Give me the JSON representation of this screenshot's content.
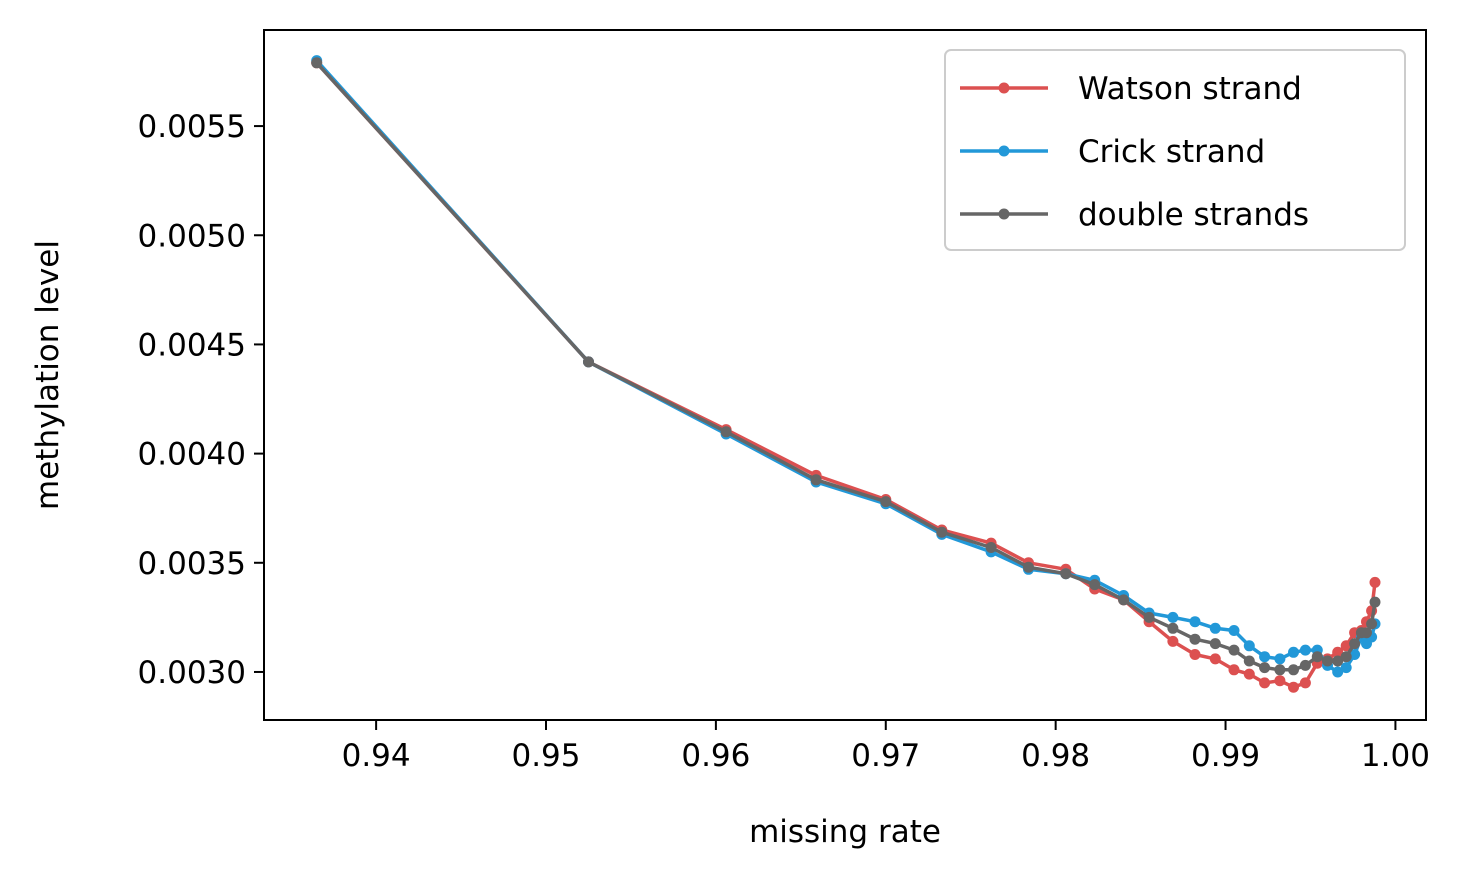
{
  "chart_data": {
    "type": "line",
    "xlabel": "missing rate",
    "ylabel": "methylation level",
    "xlim": [
      0.9334,
      1.0018
    ],
    "ylim": [
      0.00278,
      0.00594
    ],
    "x_ticks": [
      0.94,
      0.95,
      0.96,
      0.97,
      0.98,
      0.99,
      1.0
    ],
    "x_tick_labels": [
      "0.94",
      "0.95",
      "0.96",
      "0.97",
      "0.98",
      "0.99",
      "1.00"
    ],
    "y_ticks": [
      0.003,
      0.0035,
      0.004,
      0.0045,
      0.005,
      0.0055
    ],
    "y_tick_labels": [
      "0.0030",
      "0.0035",
      "0.0040",
      "0.0045",
      "0.0050",
      "0.0055"
    ],
    "grid": false,
    "legend_position": "top-right",
    "series": [
      {
        "name": "Watson strand",
        "color": "#dc5050",
        "x": [
          0.9365,
          0.9525,
          0.9606,
          0.9659,
          0.97,
          0.9733,
          0.9762,
          0.9784,
          0.9806,
          0.9823,
          0.984,
          0.9855,
          0.9869,
          0.9882,
          0.9894,
          0.9905,
          0.9914,
          0.9923,
          0.9932,
          0.994,
          0.9947,
          0.9954,
          0.996,
          0.9966,
          0.9971,
          0.9976,
          0.998,
          0.9983,
          0.9986,
          0.9988
        ],
        "y": [
          0.00579,
          0.00442,
          0.00411,
          0.0039,
          0.00379,
          0.00365,
          0.00359,
          0.0035,
          0.00347,
          0.00338,
          0.00333,
          0.00323,
          0.00314,
          0.00308,
          0.00306,
          0.00301,
          0.00299,
          0.00295,
          0.00296,
          0.00293,
          0.00295,
          0.00304,
          0.00306,
          0.00309,
          0.00312,
          0.00318,
          0.00319,
          0.00323,
          0.00328,
          0.00341
        ]
      },
      {
        "name": "Crick strand",
        "color": "#2298d8",
        "x": [
          0.9365,
          0.9525,
          0.9606,
          0.9659,
          0.97,
          0.9733,
          0.9762,
          0.9784,
          0.9806,
          0.9823,
          0.984,
          0.9855,
          0.9869,
          0.9882,
          0.9894,
          0.9905,
          0.9914,
          0.9923,
          0.9932,
          0.994,
          0.9947,
          0.9954,
          0.996,
          0.9966,
          0.9971,
          0.9976,
          0.998,
          0.9983,
          0.9986,
          0.9988
        ],
        "y": [
          0.0058,
          0.00442,
          0.00409,
          0.00387,
          0.00377,
          0.00363,
          0.00355,
          0.00347,
          0.00345,
          0.00342,
          0.00335,
          0.00327,
          0.00325,
          0.00323,
          0.0032,
          0.00319,
          0.00312,
          0.00307,
          0.00306,
          0.00309,
          0.0031,
          0.0031,
          0.00303,
          0.003,
          0.00302,
          0.00308,
          0.00316,
          0.00313,
          0.00316,
          0.00322
        ]
      },
      {
        "name": "double strands",
        "color": "#666666",
        "x": [
          0.9365,
          0.9525,
          0.9606,
          0.9659,
          0.97,
          0.9733,
          0.9762,
          0.9784,
          0.9806,
          0.9823,
          0.984,
          0.9855,
          0.9869,
          0.9882,
          0.9894,
          0.9905,
          0.9914,
          0.9923,
          0.9932,
          0.994,
          0.9947,
          0.9954,
          0.996,
          0.9966,
          0.9971,
          0.9976,
          0.998,
          0.9983,
          0.9986,
          0.9988
        ],
        "y": [
          0.00579,
          0.00442,
          0.0041,
          0.00388,
          0.00378,
          0.00364,
          0.00357,
          0.00348,
          0.00345,
          0.0034,
          0.00333,
          0.00325,
          0.0032,
          0.00315,
          0.00313,
          0.0031,
          0.00305,
          0.00302,
          0.00301,
          0.00301,
          0.00303,
          0.00307,
          0.00305,
          0.00305,
          0.00307,
          0.00313,
          0.00318,
          0.00318,
          0.00322,
          0.00332
        ]
      }
    ]
  }
}
